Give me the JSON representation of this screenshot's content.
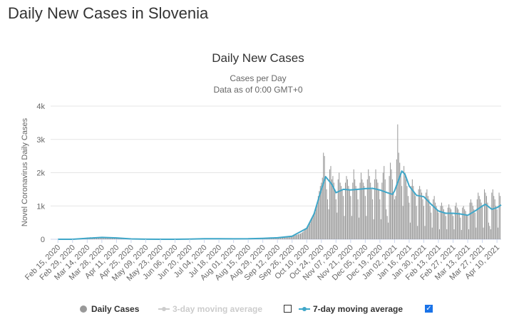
{
  "page": {
    "title": "Daily New Cases in Slovenia"
  },
  "chart_data": {
    "type": "bar",
    "title": "Daily New Cases",
    "subtitle_lines": [
      "Cases per Day",
      "Data as of 0:00 GMT+0"
    ],
    "ylabel": "Novel Coronavirus Daily Cases",
    "xlabel": "",
    "ylim": [
      0,
      4000
    ],
    "y_ticks": [
      0,
      1000,
      2000,
      3000,
      4000
    ],
    "y_tick_labels": [
      "0",
      "1k",
      "2k",
      "3k",
      "4k"
    ],
    "x_tick_labels": [
      "Feb 15, 2020",
      "Feb 29, 2020",
      "Mar 14, 2020",
      "Mar 28, 2020",
      "Apr 11, 2020",
      "Apr 25, 2020",
      "May 09, 2020",
      "May 23, 2020",
      "Jun 06, 2020",
      "Jun 20, 2020",
      "Jul 04, 2020",
      "Jul 18, 2020",
      "Aug 01, 2020",
      "Aug 15, 2020",
      "Aug 29, 2020",
      "Sep 12, 2020",
      "Sep 26, 2020",
      "Oct 10, 2020",
      "Oct 24, 2020",
      "Nov 07, 2020",
      "Nov 21, 2020",
      "Dec 05, 2020",
      "Dec 19, 2020",
      "Jan 02, 2021",
      "Jan 16, 2021",
      "Jan 30, 2021",
      "Feb 13, 2021",
      "Feb 27, 2021",
      "Mar 13, 2021",
      "Mar 27, 2021",
      "Apr 10, 2021"
    ],
    "grid": "horizontal",
    "colors": {
      "bars": "#999999",
      "moving_avg": "#3fa7c9",
      "axis_text": "#666666"
    },
    "series": [
      {
        "name": "Daily Cases",
        "segments": [
          {
            "from": "Feb 15, 2020",
            "to": "Feb 29, 2020",
            "daily": [
              0,
              0,
              0,
              0,
              0,
              0,
              0,
              0,
              0,
              0,
              0,
              0,
              0,
              0
            ]
          },
          {
            "from": "Feb 29, 2020",
            "to": "Mar 14, 2020",
            "daily": [
              0,
              0,
              0,
              0,
              2,
              4,
              6,
              8,
              12,
              17,
              20,
              28,
              37,
              45
            ]
          },
          {
            "from": "Mar 14, 2020",
            "to": "Mar 28, 2020",
            "daily": [
              50,
              55,
              45,
              60,
              52,
              48,
              62,
              58,
              55,
              50,
              60,
              65,
              58,
              70
            ]
          },
          {
            "from": "Mar 28, 2020",
            "to": "Apr 11, 2020",
            "daily": [
              55,
              60,
              50,
              45,
              58,
              52,
              48,
              40,
              45,
              38,
              42,
              35,
              30,
              28
            ]
          },
          {
            "from": "Apr 11, 2020",
            "to": "Apr 25, 2020",
            "daily": [
              25,
              22,
              20,
              18,
              16,
              15,
              12,
              10,
              10,
              8,
              8,
              6,
              6,
              5
            ]
          },
          {
            "from": "Apr 25, 2020",
            "to": "May 09, 2020",
            "daily": [
              5,
              4,
              4,
              3,
              3,
              2,
              2,
              2,
              2,
              1,
              1,
              1,
              1,
              1
            ]
          },
          {
            "from": "May 09, 2020",
            "to": "May 23, 2020",
            "daily": [
              1,
              1,
              1,
              1,
              0,
              1,
              1,
              0,
              1,
              0,
              1,
              1,
              0,
              1
            ]
          },
          {
            "from": "May 23, 2020",
            "to": "Jun 06, 2020",
            "daily": [
              1,
              0,
              1,
              1,
              0,
              1,
              0,
              1,
              1,
              0,
              1,
              1,
              1,
              1
            ]
          },
          {
            "from": "Jun 06, 2020",
            "to": "Jun 20, 2020",
            "daily": [
              1,
              1,
              1,
              2,
              2,
              2,
              3,
              3,
              4,
              4,
              5,
              5,
              6,
              7
            ]
          },
          {
            "from": "Jun 20, 2020",
            "to": "Jul 04, 2020",
            "daily": [
              8,
              9,
              10,
              12,
              14,
              15,
              16,
              18,
              18,
              20,
              20,
              22,
              22,
              20
            ]
          },
          {
            "from": "Jul 04, 2020",
            "to": "Jul 18, 2020",
            "daily": [
              20,
              18,
              22,
              20,
              24,
              18,
              16,
              20,
              22,
              18,
              15,
              16,
              18,
              14
            ]
          },
          {
            "from": "Jul 18, 2020",
            "to": "Aug 01, 2020",
            "daily": [
              15,
              12,
              14,
              16,
              12,
              10,
              12,
              14,
              12,
              10,
              12,
              14,
              10,
              12
            ]
          },
          {
            "from": "Aug 01, 2020",
            "to": "Aug 15, 2020",
            "daily": [
              12,
              10,
              14,
              16,
              15,
              18,
              14,
              12,
              16,
              18,
              15,
              14,
              16,
              18
            ]
          },
          {
            "from": "Aug 15, 2020",
            "to": "Aug 29, 2020",
            "daily": [
              18,
              20,
              22,
              24,
              20,
              22,
              26,
              28,
              25,
              22,
              26,
              28,
              30,
              32
            ]
          },
          {
            "from": "Aug 29, 2020",
            "to": "Sep 12, 2020",
            "daily": [
              30,
              28,
              32,
              35,
              38,
              36,
              34,
              38,
              40,
              42,
              45,
              48,
              50,
              55
            ]
          },
          {
            "from": "Sep 12, 2020",
            "to": "Sep 26, 2020",
            "daily": [
              50,
              48,
              55,
              60,
              62,
              70,
              75,
              72,
              70,
              68,
              78,
              85,
              90,
              95
            ]
          },
          {
            "from": "Sep 26, 2020",
            "to": "Oct 10, 2020",
            "daily": [
              100,
              110,
              105,
              120,
              130,
              140,
              150,
              160,
              170,
              190,
              210,
              240,
              280,
              320
            ]
          },
          {
            "from": "Oct 10, 2020",
            "to": "Oct 24, 2020",
            "daily": [
              350,
              380,
              420,
              470,
              550,
              620,
              700,
              760,
              850,
              950,
              1100,
              1300,
              1450,
              1600
            ]
          },
          {
            "from": "Oct 24, 2020",
            "to": "Nov 07, 2020",
            "daily": [
              1700,
              1850,
              2600,
              2500,
              1900,
              1500,
              1200,
              900,
              2100,
              2200,
              1800,
              1900,
              1700,
              1500
            ]
          },
          {
            "from": "Nov 07, 2020",
            "to": "Nov 21, 2020",
            "daily": [
              1200,
              800,
              1800,
              2000,
              1700,
              1600,
              1500,
              1300,
              700,
              1700,
              1900,
              1800,
              1600,
              1500
            ]
          },
          {
            "from": "Nov 21, 2020",
            "to": "Dec 05, 2020",
            "daily": [
              1300,
              700,
              1700,
              2100,
              1800,
              1600,
              1500,
              1200,
              650,
              1700,
              2000,
              1800,
              1700,
              1600
            ]
          },
          {
            "from": "Dec 05, 2020",
            "to": "Dec 19, 2020",
            "daily": [
              1300,
              700,
              1800,
              2100,
              1900,
              1700,
              1500,
              1200,
              600,
              1800,
              2100,
              1800,
              1700,
              1500
            ]
          },
          {
            "from": "Dec 19, 2020",
            "to": "Jan 02, 2021",
            "daily": [
              1200,
              600,
              1700,
              2000,
              2200,
              1800,
              900,
              700,
              500,
              1900,
              2300,
              2100,
              1800,
              1400
            ]
          },
          {
            "from": "Jan 02, 2021",
            "to": "Jan 16, 2021",
            "daily": [
              1200,
              1300,
              2400,
              3450,
              2600,
              2300,
              2000,
              1600,
              1000,
              2200,
              2000,
              1800,
              1600,
              1300
            ]
          },
          {
            "from": "Jan 16, 2021",
            "to": "Jan 30, 2021",
            "daily": [
              1100,
              500,
              1600,
              1800,
              1600,
              1400,
              1300,
              1000,
              400,
              1500,
              1600,
              1500,
              1400,
              1200
            ]
          },
          {
            "from": "Jan 30, 2021",
            "to": "Feb 13, 2021",
            "daily": [
              1000,
              400,
              1400,
              1500,
              1300,
              1200,
              1000,
              800,
              350,
              1200,
              1300,
              1100,
              1000,
              900
            ]
          },
          {
            "from": "Feb 13, 2021",
            "to": "Feb 27, 2021",
            "daily": [
              800,
              300,
              1000,
              1100,
              1000,
              900,
              800,
              700,
              300,
              950,
              1050,
              950,
              900,
              800
            ]
          },
          {
            "from": "Feb 27, 2021",
            "to": "Mar 13, 2021",
            "daily": [
              700,
              300,
              1000,
              1100,
              950,
              900,
              800,
              650,
              280,
              950,
              1000,
              900,
              850,
              750
            ]
          },
          {
            "from": "Mar 13, 2021",
            "to": "Mar 27, 2021",
            "daily": [
              700,
              300,
              1100,
              1200,
              1100,
              1000,
              900,
              800,
              350,
              1200,
              1400,
              1300,
              1200,
              1100
            ]
          },
          {
            "from": "Mar 27, 2021",
            "to": "Apr 10, 2021",
            "daily": [
              1000,
              350,
              1500,
              1400,
              1300,
              1100,
              500,
              400,
              300,
              1400,
              1500,
              1300,
              1200,
              1000
            ]
          },
          {
            "from": "Apr 10, 2021",
            "to": "Apr 14, 2021",
            "daily": [
              900,
              350,
              1400,
              1300
            ]
          }
        ]
      },
      {
        "name": "7-day moving average",
        "points": [
          [
            "Feb 15, 2020",
            0
          ],
          [
            "Feb 29, 2020",
            0
          ],
          [
            "Mar 14, 2020",
            30
          ],
          [
            "Mar 28, 2020",
            55
          ],
          [
            "Apr 11, 2020",
            40
          ],
          [
            "Apr 25, 2020",
            10
          ],
          [
            "May 09, 2020",
            2
          ],
          [
            "May 23, 2020",
            1
          ],
          [
            "Jun 06, 2020",
            1
          ],
          [
            "Jun 20, 2020",
            5
          ],
          [
            "Jul 04, 2020",
            18
          ],
          [
            "Jul 18, 2020",
            15
          ],
          [
            "Aug 01, 2020",
            12
          ],
          [
            "Aug 15, 2020",
            16
          ],
          [
            "Aug 29, 2020",
            28
          ],
          [
            "Sep 12, 2020",
            45
          ],
          [
            "Sep 26, 2020",
            90
          ],
          [
            "Oct 10, 2020",
            330
          ],
          [
            "Oct 17, 2020",
            760
          ],
          [
            "Oct 24, 2020",
            1500
          ],
          [
            "Oct 28, 2020",
            1880
          ],
          [
            "Nov 03, 2020",
            1650
          ],
          [
            "Nov 07, 2020",
            1400
          ],
          [
            "Nov 14, 2020",
            1500
          ],
          [
            "Nov 21, 2020",
            1480
          ],
          [
            "Nov 28, 2020",
            1500
          ],
          [
            "Dec 05, 2020",
            1520
          ],
          [
            "Dec 12, 2020",
            1530
          ],
          [
            "Dec 19, 2020",
            1480
          ],
          [
            "Dec 26, 2020",
            1400
          ],
          [
            "Dec 31, 2020",
            1350
          ],
          [
            "Jan 02, 2021",
            1450
          ],
          [
            "Jan 09, 2021",
            2050
          ],
          [
            "Jan 12, 2021",
            1950
          ],
          [
            "Jan 16, 2021",
            1600
          ],
          [
            "Jan 23, 2021",
            1320
          ],
          [
            "Jan 30, 2021",
            1280
          ],
          [
            "Feb 06, 2021",
            1050
          ],
          [
            "Feb 13, 2021",
            850
          ],
          [
            "Feb 20, 2021",
            780
          ],
          [
            "Feb 27, 2021",
            780
          ],
          [
            "Mar 06, 2021",
            760
          ],
          [
            "Mar 13, 2021",
            720
          ],
          [
            "Mar 20, 2021",
            850
          ],
          [
            "Mar 27, 2021",
            1000
          ],
          [
            "Mar 30, 2021",
            1050
          ],
          [
            "Apr 05, 2021",
            900
          ],
          [
            "Apr 10, 2021",
            950
          ],
          [
            "Apr 14, 2021",
            1030
          ]
        ]
      }
    ]
  },
  "legend": {
    "items": [
      {
        "label": "Daily Cases",
        "enabled": true
      },
      {
        "label": "3-day moving average",
        "enabled": false,
        "checked": false
      },
      {
        "label": "7-day moving average",
        "enabled": true,
        "checked": true
      }
    ]
  }
}
